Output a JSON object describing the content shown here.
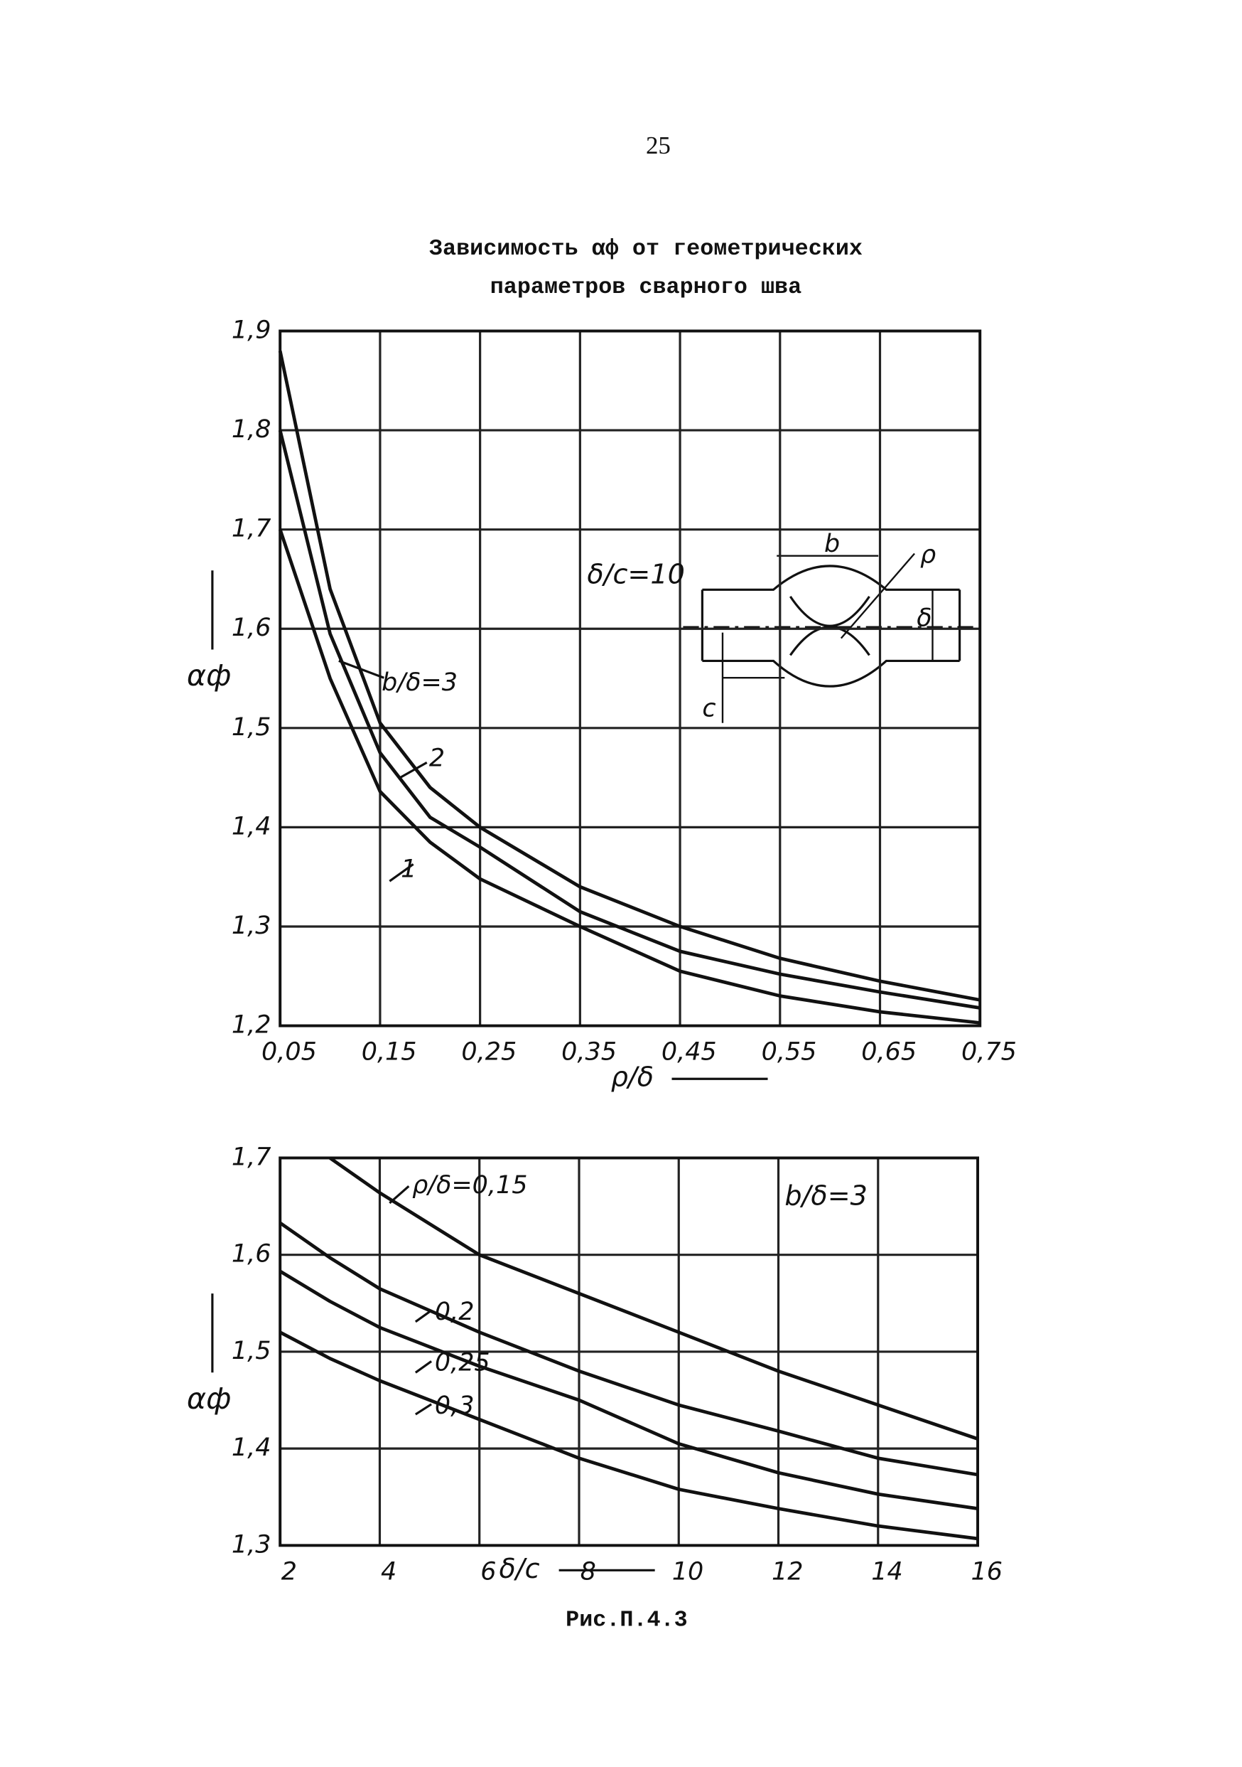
{
  "page_number": "25",
  "title_lines": [
    "Зависимость αф от геометрических",
    "параметров сварного шва"
  ],
  "caption": "Рис.П.4.3",
  "chart_data": [
    {
      "type": "line",
      "ylabel": "αф",
      "xlabel": "ρ/δ",
      "annotation": "δ/c=10",
      "inset_labels": [
        "b",
        "ρ",
        "δ",
        "c"
      ],
      "x": [
        0.05,
        0.1,
        0.15,
        0.2,
        0.25,
        0.35,
        0.45,
        0.55,
        0.65,
        0.75
      ],
      "series": [
        {
          "name": "1",
          "color": "#111111",
          "values": [
            1.7,
            1.55,
            1.436,
            1.385,
            1.348,
            1.3,
            1.255,
            1.23,
            1.214,
            1.203
          ]
        },
        {
          "name": "2",
          "color": "#111111",
          "values": [
            1.8,
            1.595,
            1.475,
            1.41,
            1.38,
            1.315,
            1.275,
            1.252,
            1.234,
            1.218
          ]
        },
        {
          "name": "b/δ=3",
          "color": "#111111",
          "values": [
            1.88,
            1.64,
            1.505,
            1.44,
            1.4,
            1.34,
            1.3,
            1.268,
            1.245,
            1.226
          ]
        }
      ],
      "xlim": [
        0.05,
        0.75
      ],
      "xticks": [
        {
          "value": 0.05,
          "label": "0,05"
        },
        {
          "value": 0.15,
          "label": "0,15"
        },
        {
          "value": 0.25,
          "label": "0,25"
        },
        {
          "value": 0.35,
          "label": "0,35"
        },
        {
          "value": 0.45,
          "label": "0,45"
        },
        {
          "value": 0.55,
          "label": "0,55"
        },
        {
          "value": 0.65,
          "label": "0,65"
        },
        {
          "value": 0.75,
          "label": "0,75"
        }
      ],
      "ylim": [
        1.2,
        1.9
      ],
      "yticks": [
        {
          "value": 1.2,
          "label": "1,2"
        },
        {
          "value": 1.3,
          "label": "1,3"
        },
        {
          "value": 1.4,
          "label": "1,4"
        },
        {
          "value": 1.5,
          "label": "1,5"
        },
        {
          "value": 1.6,
          "label": "1,6"
        },
        {
          "value": 1.7,
          "label": "1,7"
        },
        {
          "value": 1.8,
          "label": "1,8"
        },
        {
          "value": 1.9,
          "label": "1,9"
        }
      ],
      "grid": true
    },
    {
      "type": "line",
      "ylabel": "αф",
      "xlabel": "δ/c",
      "annotation": "b/δ=3",
      "x": [
        2,
        3,
        4,
        6,
        8,
        10,
        12,
        14,
        16
      ],
      "series": [
        {
          "name": "ρ/δ=0,15",
          "color": "#111111",
          "values": [
            null,
            1.7,
            1.664,
            1.6,
            1.56,
            1.52,
            1.48,
            1.445,
            1.41
          ]
        },
        {
          "name": "0,2",
          "color": "#111111",
          "values": [
            1.633,
            1.597,
            1.565,
            1.52,
            1.48,
            1.445,
            1.418,
            1.39,
            1.373
          ]
        },
        {
          "name": "0,25",
          "color": "#111111",
          "values": [
            1.583,
            1.552,
            1.525,
            1.485,
            1.45,
            1.405,
            1.375,
            1.353,
            1.338
          ]
        },
        {
          "name": "0,3",
          "color": "#111111",
          "values": [
            1.52,
            1.493,
            1.47,
            1.43,
            1.39,
            1.358,
            1.338,
            1.32,
            1.307
          ]
        }
      ],
      "xlim": [
        2,
        16
      ],
      "xticks": [
        2,
        4,
        6,
        8,
        10,
        12,
        14,
        16
      ],
      "ylim": [
        1.3,
        1.7
      ],
      "yticks": [
        {
          "value": 1.3,
          "label": "1,3"
        },
        {
          "value": 1.4,
          "label": "1,4"
        },
        {
          "value": 1.5,
          "label": "1,5"
        },
        {
          "value": 1.6,
          "label": "1,6"
        },
        {
          "value": 1.7,
          "label": "1,7"
        }
      ],
      "grid": true
    }
  ]
}
